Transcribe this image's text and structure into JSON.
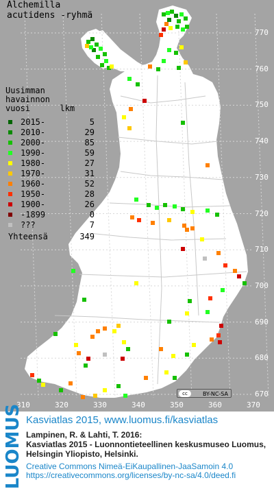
{
  "map": {
    "title_line1": "Alchemilla",
    "title_line2": "acutidens -ryhmä",
    "legend_heading": "Uusimman\nhavainnon\nvuosi      lkm",
    "legend": [
      {
        "label": "2015-",
        "count": "5",
        "color": "#006400"
      },
      {
        "label": "2010-",
        "count": "29",
        "color": "#0b8a00"
      },
      {
        "label": "2000-",
        "count": "85",
        "color": "#16c000"
      },
      {
        "label": "1990-",
        "count": "59",
        "color": "#22ff22"
      },
      {
        "label": "1980-",
        "count": "27",
        "color": "#ffff00"
      },
      {
        "label": "1970-",
        "count": "31",
        "color": "#ffc800"
      },
      {
        "label": "1960-",
        "count": "52",
        "color": "#ff8000"
      },
      {
        "label": "1950-",
        "count": "28",
        "color": "#ff3000"
      },
      {
        "label": "1900-",
        "count": "26",
        "color": "#cc0000"
      },
      {
        "label": "-1899",
        "count": "0",
        "color": "#800000"
      },
      {
        "label": "???",
        "count": "7",
        "color": "#c0c0c0"
      }
    ],
    "total_label": "Yhteensä",
    "total_count": "349",
    "y_ticks": [
      "770",
      "760",
      "750",
      "740",
      "730",
      "720",
      "710",
      "700",
      "690",
      "680",
      "670"
    ],
    "x_ticks": [
      "310",
      "320",
      "330",
      "340",
      "350",
      "360",
      "370"
    ],
    "cc_badge": "BY-NC-SA",
    "cc_circle": "cc"
  },
  "footer": {
    "logo": "LUOMUS",
    "link": "Kasviatlas 2015, www.luomus.fi/kasviatlas",
    "ref1": "Lampinen, R. & Lahti, T. 2016:",
    "ref2": "Kasviatlas 2015 - Luonnontieteellinen keskusmuseo Luomus,",
    "ref3": "Helsingin Yliopisto, Helsinki.",
    "license1": "Creative Commons Nimeä-EiKaupallinen-JaaSamoin 4.0",
    "license2": "https://creativecommons.org/licenses/by-nc-sa/4.0/deed.fi"
  }
}
